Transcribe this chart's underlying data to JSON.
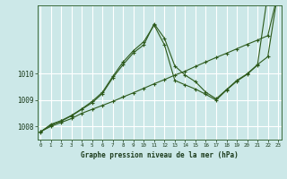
{
  "bg_color": "#cce8e8",
  "grid_color": "#ffffff",
  "line_color": "#2d5a1b",
  "xlabel": "Graphe pression niveau de la mer (hPa)",
  "hours": [
    0,
    1,
    2,
    3,
    4,
    5,
    6,
    7,
    8,
    9,
    10,
    11,
    12,
    13,
    14,
    15,
    16,
    17,
    18,
    19,
    20,
    21,
    22,
    23
  ],
  "y_linear": [
    1007.8,
    1008.0,
    1008.15,
    1008.3,
    1008.5,
    1008.65,
    1008.8,
    1008.95,
    1009.12,
    1009.28,
    1009.45,
    1009.62,
    1009.78,
    1009.95,
    1010.1,
    1010.28,
    1010.45,
    1010.62,
    1010.78,
    1010.95,
    1011.12,
    1011.28,
    1011.45,
    1013.1
  ],
  "y_peak": [
    1007.8,
    1008.05,
    1008.2,
    1008.4,
    1008.65,
    1008.9,
    1009.25,
    1009.85,
    1010.35,
    1010.8,
    1011.1,
    1011.9,
    1011.35,
    1010.3,
    1009.95,
    1009.7,
    1009.3,
    1009.05,
    1009.4,
    1009.75,
    1010.0,
    1010.35,
    1010.65,
    1013.15
  ],
  "y_mid": [
    1007.78,
    1008.08,
    1008.22,
    1008.42,
    1008.67,
    1008.95,
    1009.3,
    1009.9,
    1010.45,
    1010.88,
    1011.22,
    1011.85,
    1011.1,
    1009.75,
    1009.58,
    1009.42,
    1009.22,
    1009.0,
    1009.38,
    1009.72,
    1009.98,
    1010.33,
    1013.05,
    1013.2
  ],
  "ylim_lo": 1007.5,
  "ylim_hi": 1012.6,
  "yticks": [
    1008,
    1009,
    1010
  ],
  "xlim_lo": -0.3,
  "xlim_hi": 23.3
}
